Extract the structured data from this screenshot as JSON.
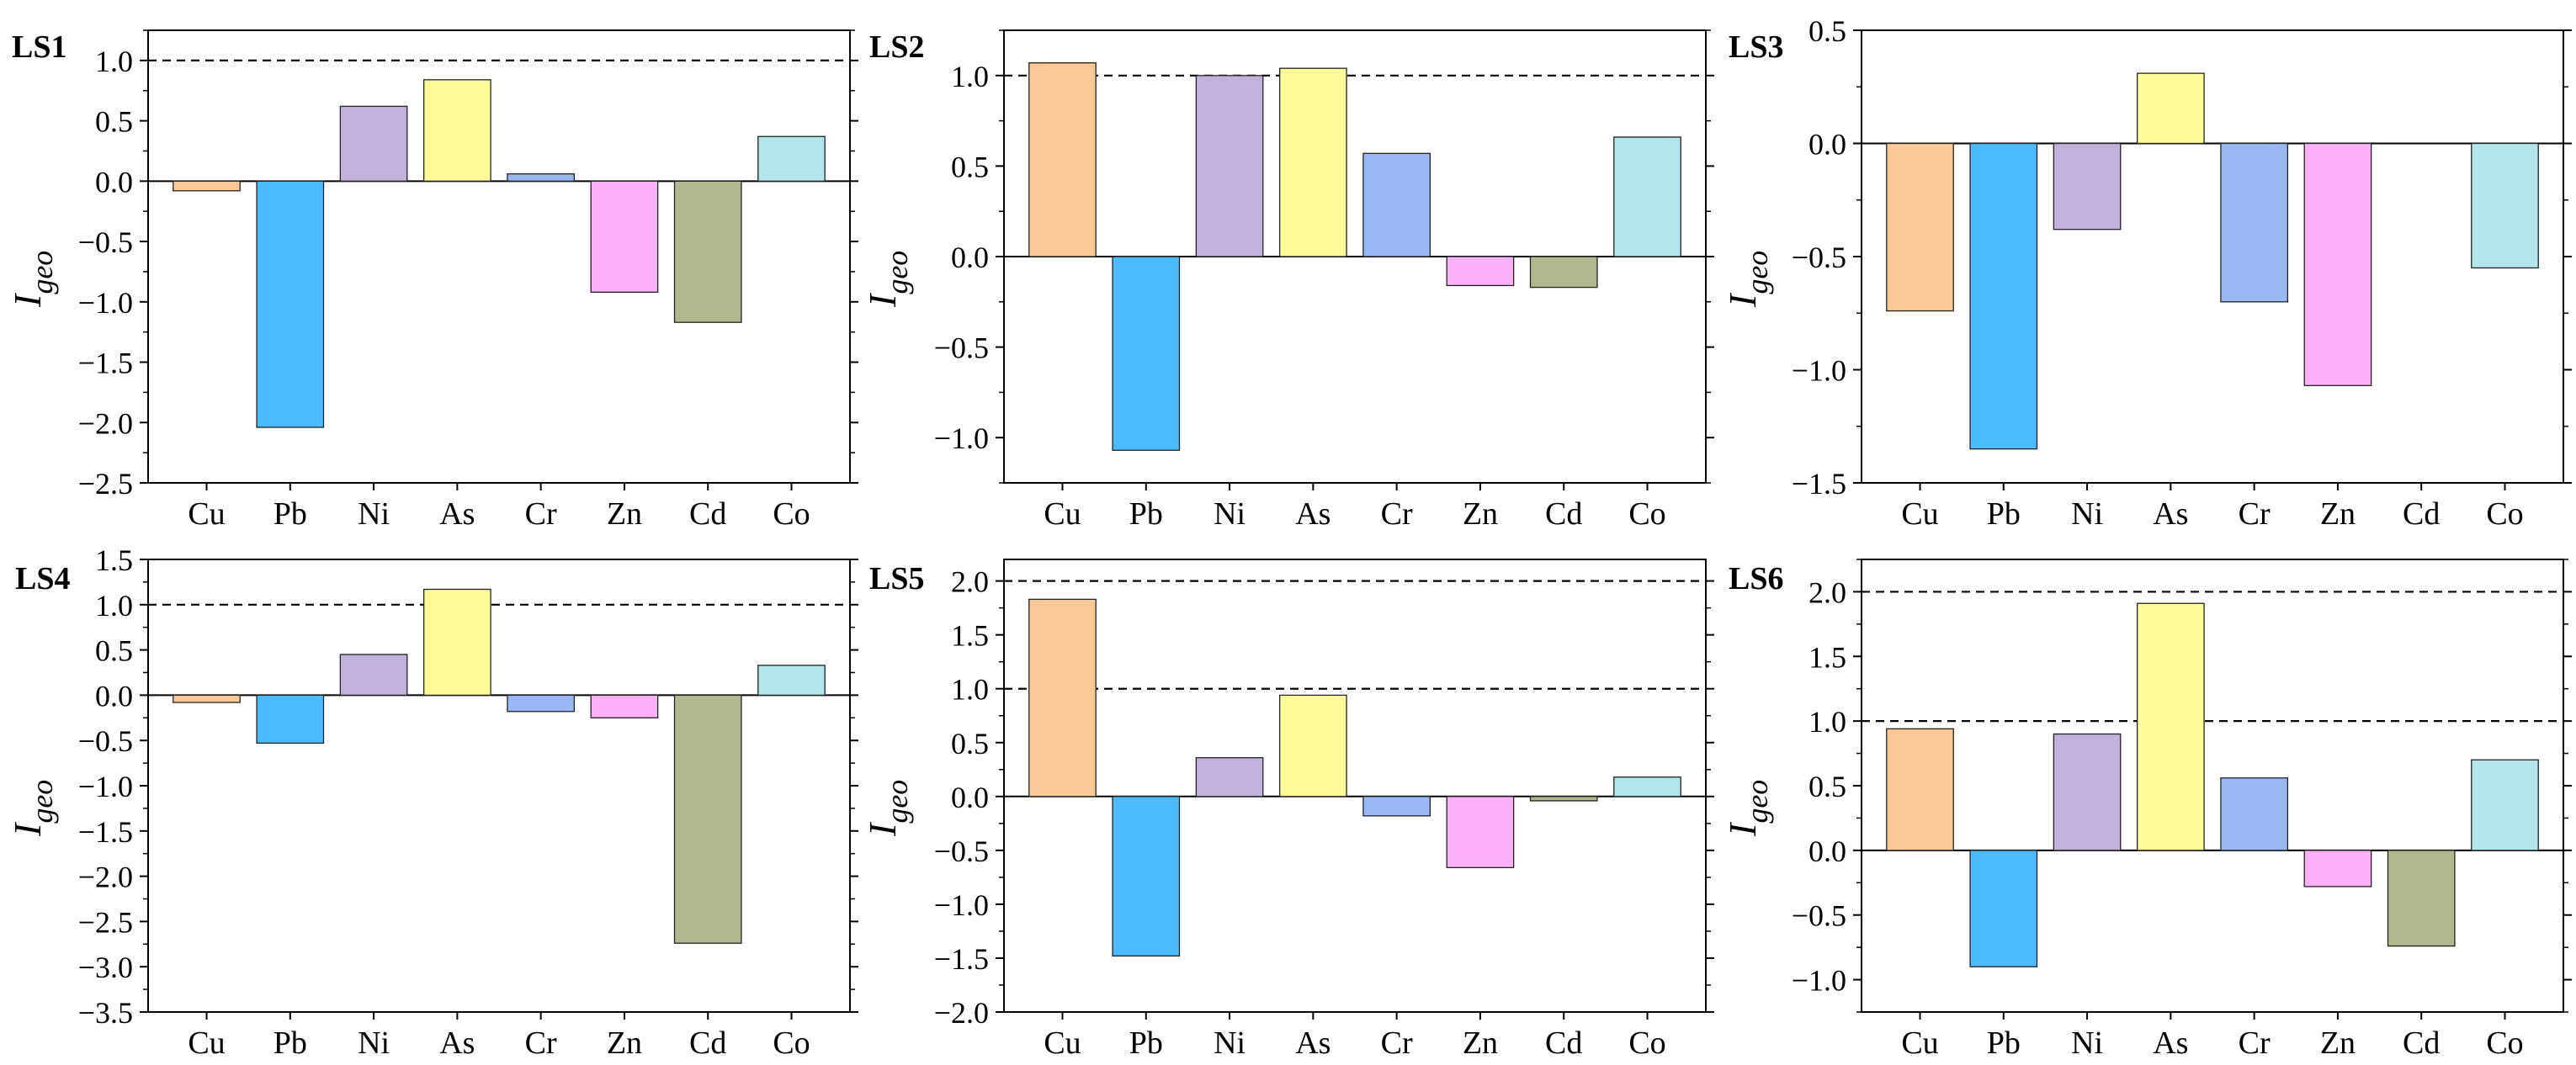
{
  "y_axis_label": "I",
  "y_axis_subscript": "geo",
  "colors": {
    "Cu": "#fbc896",
    "Pb": "#4dbbfb",
    "Ni": "#c2b1d8",
    "As": "#fffb9b",
    "Cr": "#9cb8f4",
    "Zn": "#fbb1f6",
    "Cd": "#b3b78f",
    "Co": "#b3e6ea"
  },
  "chart_data": [
    {
      "type": "bar",
      "title": "LS1",
      "categories": [
        "Cu",
        "Pb",
        "Ni",
        "As",
        "Cr",
        "Zn",
        "Cd",
        "Co"
      ],
      "values": [
        -0.08,
        -2.04,
        0.62,
        0.84,
        0.06,
        -0.92,
        -1.17,
        0.37
      ],
      "ylim": [
        -2.5,
        1.25
      ],
      "yticks": [
        "1.0",
        "0.5",
        "0.0",
        "-0.5",
        "-1.0",
        "-1.5",
        "-2.0",
        "-2.5"
      ],
      "reference_lines": [
        1.0
      ]
    },
    {
      "type": "bar",
      "title": "LS2",
      "categories": [
        "Cu",
        "Pb",
        "Ni",
        "As",
        "Cr",
        "Zn",
        "Cd",
        "Co"
      ],
      "values": [
        1.07,
        -1.07,
        1.0,
        1.04,
        0.57,
        -0.16,
        -0.17,
        0.66
      ],
      "ylim": [
        -1.25,
        1.25
      ],
      "yticks": [
        "1.0",
        "0.5",
        "0.0",
        "-0.5",
        "-1.0"
      ],
      "reference_lines": [
        1.0
      ]
    },
    {
      "type": "bar",
      "title": "LS3",
      "categories": [
        "Cu",
        "Pb",
        "Ni",
        "As",
        "Cr",
        "Zn",
        "Cd",
        "Co"
      ],
      "values": [
        -0.74,
        -1.35,
        -0.38,
        0.31,
        -0.7,
        -1.07,
        0,
        -0.55
      ],
      "ylim": [
        -1.5,
        0.5
      ],
      "yticks": [
        "0.5",
        "0.0",
        "-0.5",
        "-1.0",
        "-1.5"
      ],
      "reference_lines": []
    },
    {
      "type": "bar",
      "title": "LS4",
      "categories": [
        "Cu",
        "Pb",
        "Ni",
        "As",
        "Cr",
        "Zn",
        "Cd",
        "Co"
      ],
      "values": [
        -0.08,
        -0.53,
        0.45,
        1.17,
        -0.18,
        -0.25,
        -2.74,
        0.33
      ],
      "ylim": [
        -3.5,
        1.5
      ],
      "yticks": [
        "1.5",
        "1.0",
        "0.5",
        "0.0",
        "-0.5",
        "-1.0",
        "-1.5",
        "-2.0",
        "-2.5",
        "-3.0",
        "-3.5"
      ],
      "reference_lines": [
        1.0
      ]
    },
    {
      "type": "bar",
      "title": "LS5",
      "categories": [
        "Cu",
        "Pb",
        "Ni",
        "As",
        "Cr",
        "Zn",
        "Cd",
        "Co"
      ],
      "values": [
        1.83,
        -1.48,
        0.36,
        0.94,
        -0.18,
        -0.66,
        -0.04,
        0.18
      ],
      "ylim": [
        -2.0,
        2.2
      ],
      "yticks": [
        "2.0",
        "1.5",
        "1.0",
        "0.5",
        "0.0",
        "-0.5",
        "-1.0",
        "-1.5",
        "-2.0"
      ],
      "reference_lines": [
        1.0,
        2.0
      ]
    },
    {
      "type": "bar",
      "title": "LS6",
      "categories": [
        "Cu",
        "Pb",
        "Ni",
        "As",
        "Cr",
        "Zn",
        "Cd",
        "Co"
      ],
      "values": [
        0.94,
        -0.9,
        0.9,
        1.91,
        0.56,
        -0.28,
        -0.74,
        0.7
      ],
      "ylim": [
        -1.25,
        2.25
      ],
      "yticks": [
        "2.0",
        "1.5",
        "1.0",
        "0.5",
        "0.0",
        "-0.5",
        "-1.0"
      ],
      "reference_lines": [
        1.0,
        2.0
      ]
    }
  ]
}
